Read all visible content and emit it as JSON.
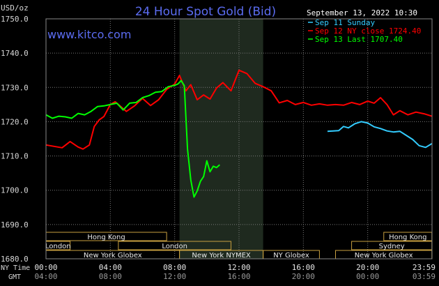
{
  "chart_data": {
    "type": "line",
    "title": "24 Hour Spot Gold (Bid)",
    "ylabel": "USD/oz",
    "watermark": "www.kitco.com",
    "timestamp": "September 13, 2022 10:30",
    "ylim": [
      1680,
      1750
    ],
    "yticks": [
      "1750.0",
      "1740.0",
      "1730.0",
      "1720.0",
      "1710.0",
      "1700.0",
      "1690.0",
      "1680.0"
    ],
    "xlim": [
      0,
      24
    ],
    "xtick_row1_label": "NY Time",
    "xtick_row2_label": "GMT",
    "xticks_ny": [
      "00:00",
      "04:00",
      "08:00",
      "12:00",
      "16:00",
      "20:00",
      "23:59"
    ],
    "xticks_gmt": [
      "04:00",
      "08:00",
      "12:00",
      "16:00",
      "20:00",
      "00:00",
      "03:59"
    ],
    "legend_position": "top-right",
    "shaded_region_hours": [
      8.3,
      13.5
    ],
    "series": [
      {
        "name": "Sep 11 Sunday",
        "color": "#33ccff",
        "x": [
          17.5,
          18.2,
          18.5,
          18.8,
          19.2,
          19.6,
          20.0,
          20.4,
          20.8,
          21.2,
          21.6,
          22.0,
          22.4,
          22.8,
          23.2,
          23.6,
          23.99
        ],
        "y": [
          1717.2,
          1717.4,
          1718.6,
          1718.2,
          1719.4,
          1720.0,
          1719.6,
          1718.5,
          1718.0,
          1717.3,
          1717.0,
          1717.2,
          1716.0,
          1714.8,
          1713.0,
          1712.5,
          1713.6
        ]
      },
      {
        "name": "Sep 12 NY close 1724.40",
        "color": "#ff0000",
        "x": [
          0.0,
          0.5,
          1.0,
          1.5,
          2.0,
          2.3,
          2.7,
          3.0,
          3.3,
          3.6,
          4.0,
          4.3,
          4.6,
          5.0,
          5.5,
          6.0,
          6.5,
          7.0,
          7.5,
          8.0,
          8.3,
          8.7,
          9.0,
          9.4,
          9.8,
          10.2,
          10.6,
          11.0,
          11.5,
          12.0,
          12.5,
          13.0,
          13.5,
          14.0,
          14.5,
          15.0,
          15.5,
          16.0,
          16.5,
          17.0,
          17.5,
          18.0,
          18.5,
          19.0,
          19.5,
          20.0,
          20.4,
          20.8,
          21.2,
          21.6,
          22.0,
          22.5,
          23.0,
          23.5,
          23.99
        ],
        "y": [
          1713.2,
          1712.8,
          1712.4,
          1714.2,
          1712.6,
          1712.0,
          1713.2,
          1718.6,
          1720.5,
          1721.5,
          1725.0,
          1725.8,
          1724.6,
          1723.0,
          1724.6,
          1726.8,
          1724.7,
          1726.4,
          1729.4,
          1731.0,
          1733.5,
          1729.0,
          1730.8,
          1726.4,
          1727.8,
          1726.6,
          1729.8,
          1731.4,
          1729.0,
          1735.0,
          1734.0,
          1731.2,
          1730.2,
          1729.0,
          1725.5,
          1726.2,
          1725.0,
          1725.6,
          1724.8,
          1725.2,
          1724.8,
          1725.0,
          1724.8,
          1725.6,
          1725.0,
          1726.0,
          1725.4,
          1727.0,
          1725.0,
          1722.0,
          1723.2,
          1722.0,
          1722.8,
          1722.3,
          1721.6
        ]
      },
      {
        "name": "Sep 13 Last 1707.40",
        "color": "#00ff00",
        "x": [
          0.0,
          0.4,
          0.8,
          1.2,
          1.6,
          2.0,
          2.4,
          2.8,
          3.2,
          3.6,
          4.0,
          4.4,
          4.8,
          5.2,
          5.6,
          6.0,
          6.4,
          6.8,
          7.2,
          7.6,
          8.0,
          8.2,
          8.4,
          8.6,
          8.8,
          9.0,
          9.2,
          9.4,
          9.6,
          9.8,
          10.0,
          10.2,
          10.4,
          10.6,
          10.8
        ],
        "y": [
          1722.0,
          1721.0,
          1721.6,
          1721.4,
          1721.0,
          1722.4,
          1722.0,
          1723.0,
          1724.4,
          1724.6,
          1725.0,
          1725.4,
          1723.4,
          1725.4,
          1725.6,
          1727.0,
          1727.6,
          1728.6,
          1728.8,
          1730.2,
          1730.6,
          1731.0,
          1732.0,
          1730.5,
          1712.0,
          1703.0,
          1698.0,
          1699.8,
          1702.6,
          1704.0,
          1708.6,
          1705.4,
          1707.0,
          1706.6,
          1707.4
        ]
      }
    ],
    "sessions": [
      {
        "label": "Hong Kong",
        "row": 0,
        "start": 0.0,
        "end": 7.5
      },
      {
        "label": "Hong Kong",
        "row": 0,
        "start": 21.0,
        "end": 23.99
      },
      {
        "label": "London",
        "row": 1,
        "start": 0.0,
        "end": 1.5
      },
      {
        "label": "London",
        "row": 1,
        "start": 4.5,
        "end": 11.5
      },
      {
        "label": "Sydney",
        "row": 1,
        "start": 19.0,
        "end": 23.99
      },
      {
        "label": "New York Globex",
        "row": 2,
        "start": 0.0,
        "end": 8.3
      },
      {
        "label": "New York NYMEX",
        "row": 2,
        "start": 8.3,
        "end": 13.5
      },
      {
        "label": "NY Globex",
        "row": 2,
        "start": 13.5,
        "end": 17.0
      },
      {
        "label": "New York Globex",
        "row": 2,
        "start": 18.0,
        "end": 23.99
      }
    ]
  }
}
